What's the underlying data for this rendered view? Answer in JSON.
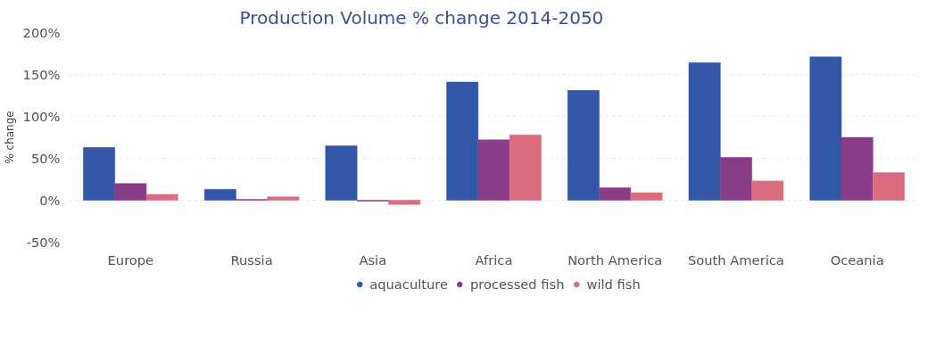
{
  "chart_data": {
    "type": "bar",
    "title": "Production Volume % change 2014-2050",
    "ylabel": "% change",
    "categories": [
      "Europe",
      "Russia",
      "Asia",
      "Africa",
      "North America",
      "South America",
      "Oceania"
    ],
    "series": [
      {
        "name": "aquaculture",
        "color": "#3257a8",
        "values": [
          63,
          13,
          65,
          141,
          131,
          164,
          171
        ]
      },
      {
        "name": "processed fish",
        "color": "#8a3d87",
        "values": [
          20,
          1,
          -1,
          72,
          15,
          51,
          75
        ]
      },
      {
        "name": "wild fish",
        "color": "#dd6b7f",
        "values": [
          7,
          4,
          -5,
          78,
          9,
          23,
          33
        ]
      }
    ],
    "ylim": [
      -50,
      200
    ],
    "yticks": [
      {
        "value": -50,
        "label": "-50%"
      },
      {
        "value": 0,
        "label": "0%"
      },
      {
        "value": 50,
        "label": "50%"
      },
      {
        "value": 100,
        "label": "100%"
      },
      {
        "value": 150,
        "label": "150%"
      },
      {
        "value": 200,
        "label": "200%"
      }
    ],
    "grid": "y",
    "legend": "bottom"
  }
}
